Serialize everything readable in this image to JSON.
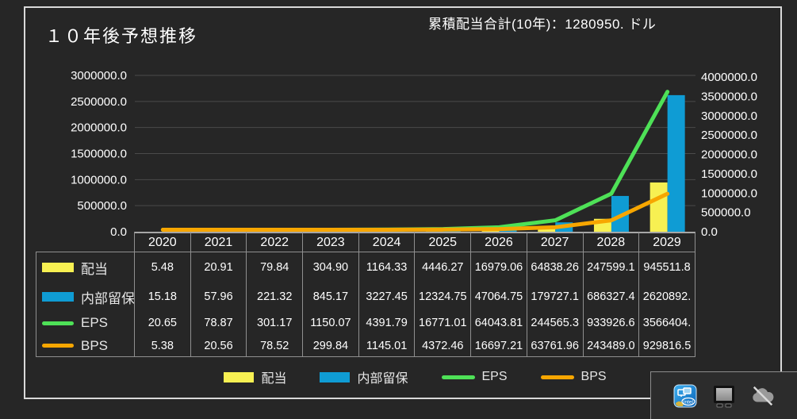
{
  "header": {
    "title": "１０年後予想推移",
    "annotation": "累積配当合計(10年)：1280950. ドル"
  },
  "colors": {
    "background": "#262626",
    "frame_border": "#d9d9d9",
    "gridline": "#4a4a4a",
    "table_border": "#8f8f8f",
    "dividend_yellow": "#f7f052",
    "retained_blue": "#0f9cd4",
    "eps_green": "#4ee157",
    "bps_orange": "#f7a600"
  },
  "chart_data": {
    "type": "combo",
    "title": "１０年後予想推移",
    "categories": [
      "2020",
      "2021",
      "2022",
      "2023",
      "2024",
      "2025",
      "2026",
      "2027",
      "2028",
      "2029"
    ],
    "series": [
      {
        "name": "配当",
        "type": "bar",
        "axis": "left",
        "color": "#f7f052",
        "values": [
          5.48,
          20.91,
          79.84,
          304.9,
          1164.33,
          4446.27,
          16979.06,
          64838.26,
          247599.1,
          945511.8
        ],
        "labels": [
          "5.48",
          "20.91",
          "79.84",
          "304.90",
          "1164.33",
          "4446.27",
          "16979.06",
          "64838.26",
          "247599.1",
          "945511.8"
        ]
      },
      {
        "name": "内部留保",
        "type": "bar",
        "axis": "left",
        "color": "#0f9cd4",
        "values": [
          15.18,
          57.96,
          221.32,
          845.17,
          3227.45,
          12324.75,
          47064.75,
          179727.1,
          686327.4,
          2620892
        ],
        "labels": [
          "15.18",
          "57.96",
          "221.32",
          "845.17",
          "3227.45",
          "12324.75",
          "47064.75",
          "179727.1",
          "686327.4",
          "2620892."
        ]
      },
      {
        "name": "EPS",
        "type": "line",
        "axis": "right",
        "color": "#4ee157",
        "values": [
          20.65,
          78.87,
          301.17,
          1150.07,
          4391.79,
          16771.01,
          64043.81,
          244565.3,
          933926.6,
          3566404
        ],
        "labels": [
          "20.65",
          "78.87",
          "301.17",
          "1150.07",
          "4391.79",
          "16771.01",
          "64043.81",
          "244565.3",
          "933926.6",
          "3566404."
        ]
      },
      {
        "name": "BPS",
        "type": "line",
        "axis": "right",
        "color": "#f7a600",
        "values": [
          5.38,
          20.56,
          78.52,
          299.84,
          1145.01,
          4372.46,
          16697.21,
          63761.96,
          243489.0,
          929816.5
        ],
        "labels": [
          "5.38",
          "20.56",
          "78.52",
          "299.84",
          "1145.01",
          "4372.46",
          "16697.21",
          "63761.96",
          "243489.0",
          "929816.5"
        ]
      }
    ],
    "left_axis": {
      "min": 0,
      "max": 3000000,
      "labels": [
        "3000000.0",
        "2500000.0",
        "2000000.0",
        "1500000.0",
        "1000000.0",
        "500000.0",
        "0.0"
      ]
    },
    "right_axis": {
      "min": 0,
      "max": 4000000,
      "labels": [
        "4000000.0",
        "3500000.0",
        "3000000.0",
        "2500000.0",
        "2000000.0",
        "1500000.0",
        "1000000.0",
        "500000.0",
        "0.0"
      ]
    },
    "grid": true,
    "legend_position": "bottom",
    "legend": [
      "配当",
      "内部留保",
      "EPS",
      "BPS"
    ]
  },
  "tray": {
    "icons": [
      {
        "name": "intel-graphics-icon",
        "brand_text": "intel"
      },
      {
        "name": "display-icon"
      },
      {
        "name": "cloud-offline-icon"
      }
    ]
  }
}
